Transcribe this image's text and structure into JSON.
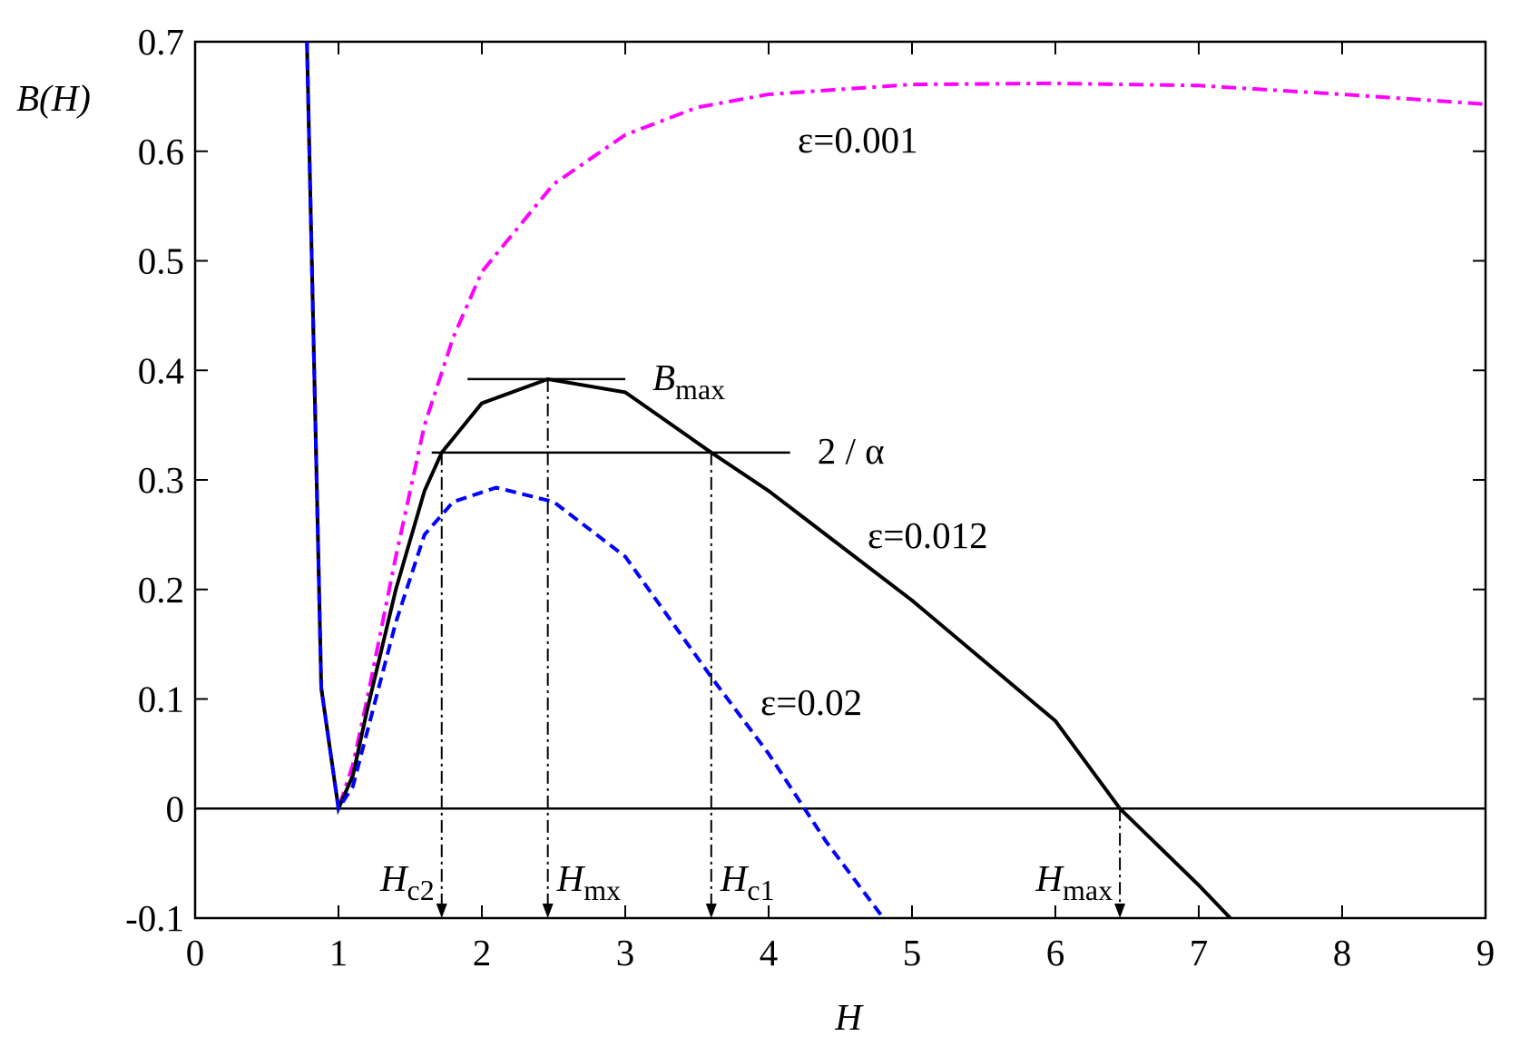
{
  "chart_data": {
    "type": "line",
    "xlabel": "H",
    "ylabel": "B(H)",
    "xlim": [
      0,
      9
    ],
    "ylim": [
      -0.1,
      0.7
    ],
    "xticks": [
      0,
      1,
      2,
      3,
      4,
      5,
      6,
      7,
      8,
      9
    ],
    "yticks": [
      -0.1,
      0,
      0.1,
      0.2,
      0.3,
      0.4,
      0.5,
      0.6,
      0.7
    ],
    "hline": 0,
    "series": [
      {
        "name": "ε=0.001",
        "color": "#ff00ff",
        "style": "dashdot",
        "x": [
          0.78,
          0.88,
          1.0,
          1.1,
          1.2,
          1.4,
          1.6,
          1.8,
          2.0,
          2.5,
          3.0,
          3.5,
          4.0,
          5.0,
          6.0,
          7.0,
          8.0,
          9.0
        ],
        "values": [
          0.7,
          0.11,
          0.0,
          0.04,
          0.1,
          0.23,
          0.35,
          0.43,
          0.49,
          0.57,
          0.615,
          0.64,
          0.652,
          0.661,
          0.662,
          0.66,
          0.652,
          0.643
        ]
      },
      {
        "name": "ε=0.012",
        "color": "#000000",
        "style": "solid",
        "x": [
          0.78,
          0.88,
          1.0,
          1.1,
          1.2,
          1.4,
          1.6,
          1.72,
          2.0,
          2.46,
          3.0,
          3.6,
          4.0,
          5.0,
          6.0,
          6.45,
          7.0,
          7.22
        ],
        "values": [
          0.7,
          0.11,
          0.0,
          0.03,
          0.09,
          0.2,
          0.29,
          0.325,
          0.37,
          0.392,
          0.38,
          0.325,
          0.29,
          0.19,
          0.08,
          0.0,
          -0.07,
          -0.1
        ]
      },
      {
        "name": "ε=0.02",
        "color": "#0000ff",
        "style": "dashed",
        "x": [
          0.78,
          0.88,
          1.0,
          1.1,
          1.2,
          1.4,
          1.6,
          1.8,
          2.1,
          2.5,
          3.0,
          3.6,
          4.0,
          4.4,
          4.8
        ],
        "values": [
          0.7,
          0.11,
          0.0,
          0.02,
          0.07,
          0.17,
          0.25,
          0.28,
          0.293,
          0.28,
          0.23,
          0.12,
          0.05,
          -0.03,
          -0.1
        ]
      }
    ],
    "levels": [
      {
        "label": "B",
        "sub": "max",
        "y": 0.392,
        "x": [
          1.9,
          3.0
        ]
      },
      {
        "label": "2 / α",
        "y": 0.325,
        "x": [
          1.65,
          4.15
        ]
      }
    ],
    "markers": [
      {
        "label": "H",
        "sub": "c2",
        "x": 1.72,
        "y": 0.325
      },
      {
        "label": "H",
        "sub": "mx",
        "x": 2.46,
        "y": 0.392
      },
      {
        "label": "H",
        "sub": "c1",
        "x": 3.6,
        "y": 0.325
      },
      {
        "label": "H",
        "sub": "max",
        "x": 6.45,
        "y": 0
      }
    ]
  }
}
